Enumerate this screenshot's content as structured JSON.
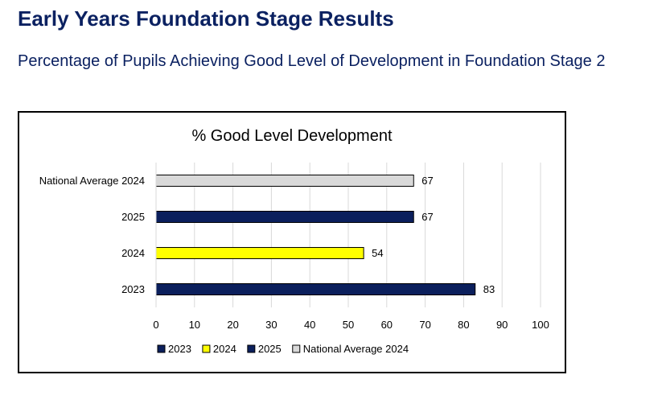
{
  "page": {
    "title": "Early Years Foundation Stage Results",
    "subtitle": "Percentage of Pupils Achieving Good Level of Development in Foundation Stage 2"
  },
  "chart_data": {
    "type": "bar",
    "orientation": "horizontal",
    "title": "% Good Level Development",
    "xlim": [
      0,
      100
    ],
    "x_ticks": [
      0,
      10,
      20,
      30,
      40,
      50,
      60,
      70,
      80,
      90,
      100
    ],
    "grid": "vertical",
    "legend_position": "bottom",
    "categories": [
      "2023",
      "2024",
      "2025",
      "National Average 2024"
    ],
    "values": [
      83,
      54,
      67,
      67
    ],
    "colors": [
      "#0b1f5c",
      "#ffff00",
      "#0b1f5c",
      "#d9d9d9"
    ],
    "legend": [
      {
        "label": "2023",
        "color": "#0b1f5c"
      },
      {
        "label": "2024",
        "color": "#ffff00"
      },
      {
        "label": "2025",
        "color": "#0b1f5c"
      },
      {
        "label": "National Average 2024",
        "color": "#d9d9d9"
      }
    ]
  }
}
